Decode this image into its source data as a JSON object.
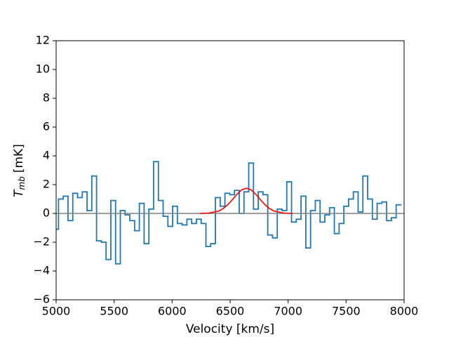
{
  "chart_data": {
    "type": "step",
    "xlabel": "Velocity [km/s]",
    "ylabel": {
      "symbol": "T",
      "subscript": "mb",
      "unit": "[mK]"
    },
    "xlim": [
      5000,
      8000
    ],
    "xticks": [
      5000,
      5500,
      6000,
      6500,
      7000,
      7500,
      8000
    ],
    "ylim": [
      -6,
      12
    ],
    "yticks": [
      {
        "value": -6,
        "label": "−6"
      },
      {
        "value": -4,
        "label": "−4"
      },
      {
        "value": -2,
        "label": "−2"
      },
      0,
      2,
      4,
      6,
      8,
      10,
      12
    ],
    "series": [
      {
        "kind": "step",
        "color": "#1f77b4",
        "x": [
          5000,
          5041,
          5082,
          5123,
          5164,
          5205,
          5246,
          5287,
          5328,
          5369,
          5410,
          5451,
          5492,
          5533,
          5574,
          5615,
          5656,
          5697,
          5738,
          5779,
          5820,
          5861,
          5902,
          5943,
          5984,
          6025,
          6066,
          6107,
          6148,
          6189,
          6230,
          6271,
          6312,
          6353,
          6394,
          6435,
          6476,
          6517,
          6558,
          6599,
          6640,
          6681,
          6722,
          6763,
          6804,
          6845,
          6886,
          6927,
          6968,
          7009,
          7050,
          7091,
          7132,
          7173,
          7214,
          7255,
          7296,
          7337,
          7378,
          7419,
          7460,
          7501,
          7542,
          7583,
          7624,
          7665,
          7706,
          7747,
          7788,
          7829,
          7870,
          7911,
          7952
        ],
        "values": [
          -1.1,
          1.0,
          1.2,
          -0.5,
          1.4,
          1.1,
          1.5,
          0.2,
          2.6,
          -1.9,
          -2.0,
          -3.2,
          0.9,
          -3.5,
          0.2,
          -0.1,
          -0.5,
          -1.2,
          0.7,
          -2.1,
          0.3,
          3.6,
          0.9,
          -0.2,
          -0.9,
          0.5,
          -0.7,
          -0.8,
          -0.4,
          -0.7,
          -0.4,
          -0.7,
          -2.3,
          -2.1,
          1.1,
          0.5,
          1.4,
          1.3,
          1.6,
          0.0,
          1.5,
          3.5,
          0.3,
          1.5,
          1.3,
          -1.5,
          -1.7,
          0.3,
          0.2,
          2.2,
          -0.6,
          -0.4,
          1.2,
          -2.4,
          0.2,
          0.9,
          -0.6,
          -0.1,
          0.4,
          -1.4,
          -0.7,
          0.5,
          1.0,
          1.5,
          0.1,
          2.6,
          1.0,
          -0.4,
          0.7,
          0.8,
          -0.5,
          -0.3,
          0.6
        ]
      },
      {
        "kind": "line",
        "color": "#808080",
        "x": [
          5000,
          8000
        ],
        "values": [
          0,
          0
        ]
      },
      {
        "kind": "line",
        "color": "#ff0000",
        "x": [
          6240,
          6320,
          6400,
          6440,
          6480,
          6520,
          6560,
          6600,
          6640,
          6680,
          6720,
          6760,
          6800,
          6840,
          6880,
          6960,
          7040
        ],
        "values": [
          0.0,
          0.03,
          0.16,
          0.34,
          0.61,
          0.96,
          1.34,
          1.64,
          1.75,
          1.64,
          1.34,
          0.96,
          0.61,
          0.34,
          0.16,
          0.03,
          0.0
        ]
      }
    ]
  }
}
